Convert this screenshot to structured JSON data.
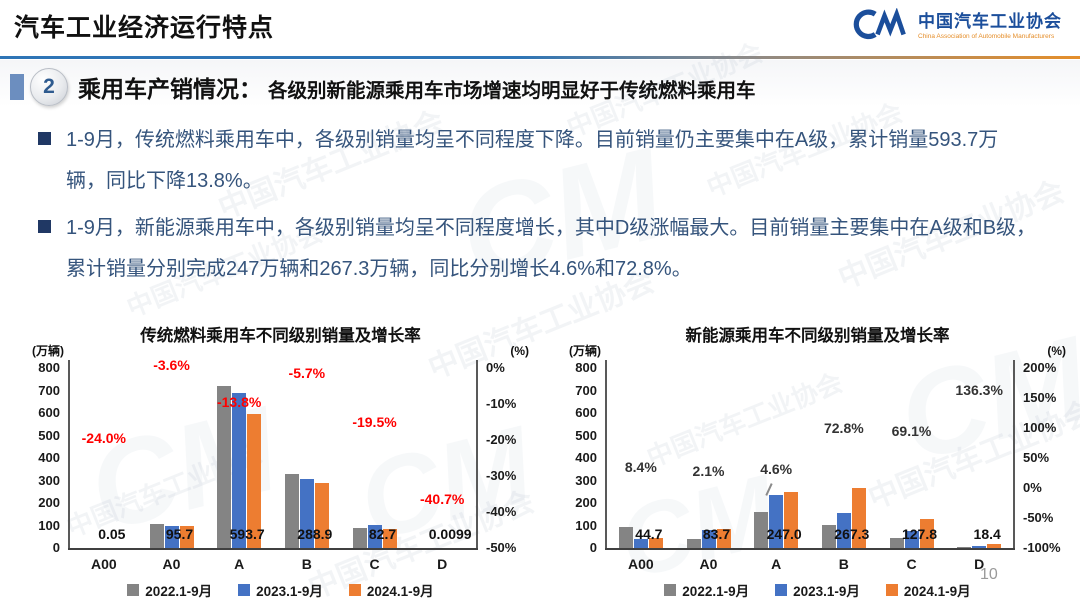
{
  "header": {
    "title": "汽车工业经济运行特点",
    "logo": {
      "mark": "CM",
      "org_cn": "中国汽车工业协会",
      "org_en": "China Association of Automobile Manufacturers"
    }
  },
  "section": {
    "number": "2",
    "heading": "乘用车产销情况：",
    "subheading": "各级别新能源乘用车市场增速均明显好于传统燃料乘用车"
  },
  "bullets": [
    "1-9月，传统燃料乘用车中，各级别销量均呈不同程度下降。目前销量仍主要集中在A级，累计销量593.7万辆，同比下降13.8%。",
    "1-9月，新能源乘用车中，各级别销量均呈不同程度增长，其中D级涨幅最大。目前销量主要集中在A级和B级，累计销量分别完成247万辆和267.3万辆，同比分别增长4.6%和72.8%。"
  ],
  "watermark": {
    "text": "中国汽车工业协会",
    "logo": "CM"
  },
  "page_number": "10",
  "colors": {
    "series_2022": "#848484",
    "series_2023": "#4472C4",
    "series_2024": "#ED7D31",
    "growth_negative": "#FF0000",
    "growth_positive": "#333333",
    "accent_blue": "#2E75B6",
    "accent_orange": "#E58E2A",
    "bullet_text": "#35547C"
  },
  "chart_data": [
    {
      "type": "bar",
      "title": "传统燃料乘用车不同级别销量及增长率",
      "left_axis_unit": "(万辆)",
      "right_axis_unit": "(%)",
      "categories": [
        "A00",
        "A0",
        "A",
        "B",
        "C",
        "D"
      ],
      "series": [
        {
          "name": "2022.1-9月",
          "color": "#848484",
          "values": [
            0.07,
            108,
            720,
            330,
            90,
            0.02
          ]
        },
        {
          "name": "2023.1-9月",
          "color": "#4472C4",
          "values": [
            0.06,
            99,
            689,
            306,
            103,
            0.017
          ]
        },
        {
          "name": "2024.1-9月",
          "color": "#ED7D31",
          "values": [
            0.05,
            95.7,
            593.7,
            288.9,
            82.7,
            0.0099
          ]
        }
      ],
      "value_labels": [
        "0.05",
        "95.7",
        "593.7",
        "288.9",
        "82.7",
        "0.0099"
      ],
      "growth_labels": [
        "-24.0%",
        "-3.6%",
        "-13.8%",
        "-5.7%",
        "-19.5%",
        "-40.7%"
      ],
      "growth_values": [
        -24.0,
        -3.6,
        -13.8,
        -5.7,
        -19.5,
        -40.7
      ],
      "growth_label_color": "#FF0000",
      "ylim_left": [
        0,
        800
      ],
      "yticks_left": [
        "800",
        "700",
        "600",
        "500",
        "400",
        "300",
        "200",
        "100",
        "0"
      ],
      "ylim_right": [
        -50,
        0
      ],
      "yticks_right": [
        "0%",
        "-10%",
        "-20%",
        "-30%",
        "-40%",
        "-50%"
      ],
      "legend_position": "bottom",
      "grid": false
    },
    {
      "type": "bar",
      "title": "新能源乘用车不同级别销量及增长率",
      "left_axis_unit": "(万辆)",
      "right_axis_unit": "(%)",
      "categories": [
        "A00",
        "A0",
        "A",
        "B",
        "C",
        "D"
      ],
      "series": [
        {
          "name": "2022.1-9月",
          "color": "#848484",
          "values": [
            93,
            40,
            160,
            100,
            45,
            2
          ]
        },
        {
          "name": "2023.1-9月",
          "color": "#4472C4",
          "values": [
            41,
            82,
            236,
            155,
            76,
            8
          ]
        },
        {
          "name": "2024.1-9月",
          "color": "#ED7D31",
          "values": [
            44.7,
            83.7,
            247.0,
            267.3,
            127.8,
            18.4
          ]
        }
      ],
      "value_labels": [
        "44.7",
        "83.7",
        "247.0",
        "267.3",
        "127.8",
        "18.4"
      ],
      "growth_labels": [
        "8.4%",
        "2.1%",
        "4.6%",
        "72.8%",
        "69.1%",
        "136.3%"
      ],
      "growth_values": [
        8.4,
        2.1,
        4.6,
        72.8,
        69.1,
        136.3
      ],
      "growth_label_color": "#333333",
      "leader_category": 2,
      "ylim_left": [
        0,
        800
      ],
      "yticks_left": [
        "800",
        "700",
        "600",
        "500",
        "400",
        "300",
        "200",
        "100",
        "0"
      ],
      "ylim_right": [
        -100,
        200
      ],
      "yticks_right": [
        "200%",
        "150%",
        "100%",
        "50%",
        "0%",
        "-50%",
        "-100%"
      ],
      "legend_position": "bottom",
      "grid": false
    }
  ]
}
